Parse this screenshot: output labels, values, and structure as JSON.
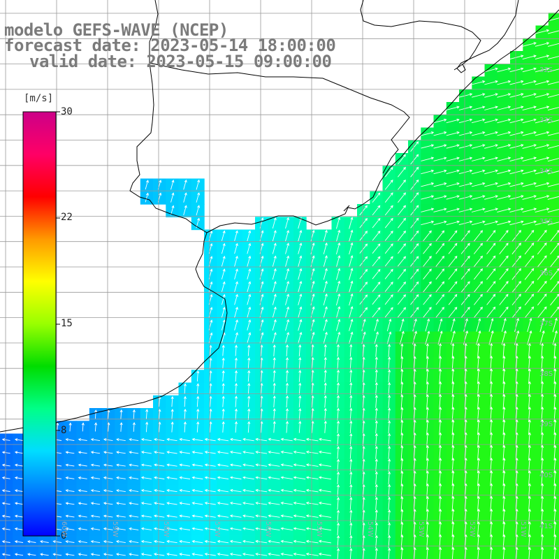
{
  "header": {
    "line1": "modelo GEFS-WAVE (NCEP)",
    "line2": "forecast date: 2023-05-14 18:00:00",
    "line3": "valid date: 2023-05-15 09:00:00"
  },
  "colorbar": {
    "unit": "[m/s]",
    "ticks": [
      "30",
      "22",
      "15",
      "8",
      "0"
    ],
    "tick_values": [
      30,
      22,
      15,
      8,
      0
    ],
    "colors": [
      "#0000ff",
      "#0077ff",
      "#00ddff",
      "#00ff88",
      "#00dd00",
      "#99ff00",
      "#ffff00",
      "#ff9900",
      "#ff0000",
      "#ff0066",
      "#cc0088"
    ]
  },
  "map": {
    "land_color": "#ffffff",
    "grid_color": "#999999",
    "arrow_color": "#ffffff",
    "coast_color": "#000000",
    "lat_labels": [
      "32S",
      "33S",
      "34S",
      "35S",
      "36S",
      "37S",
      "38S",
      "39S",
      "40S",
      "41S"
    ],
    "lon_labels": [
      "60W",
      "59W",
      "58W",
      "57W",
      "56W",
      "55W",
      "54W",
      "53W",
      "52W",
      "51W"
    ]
  }
}
